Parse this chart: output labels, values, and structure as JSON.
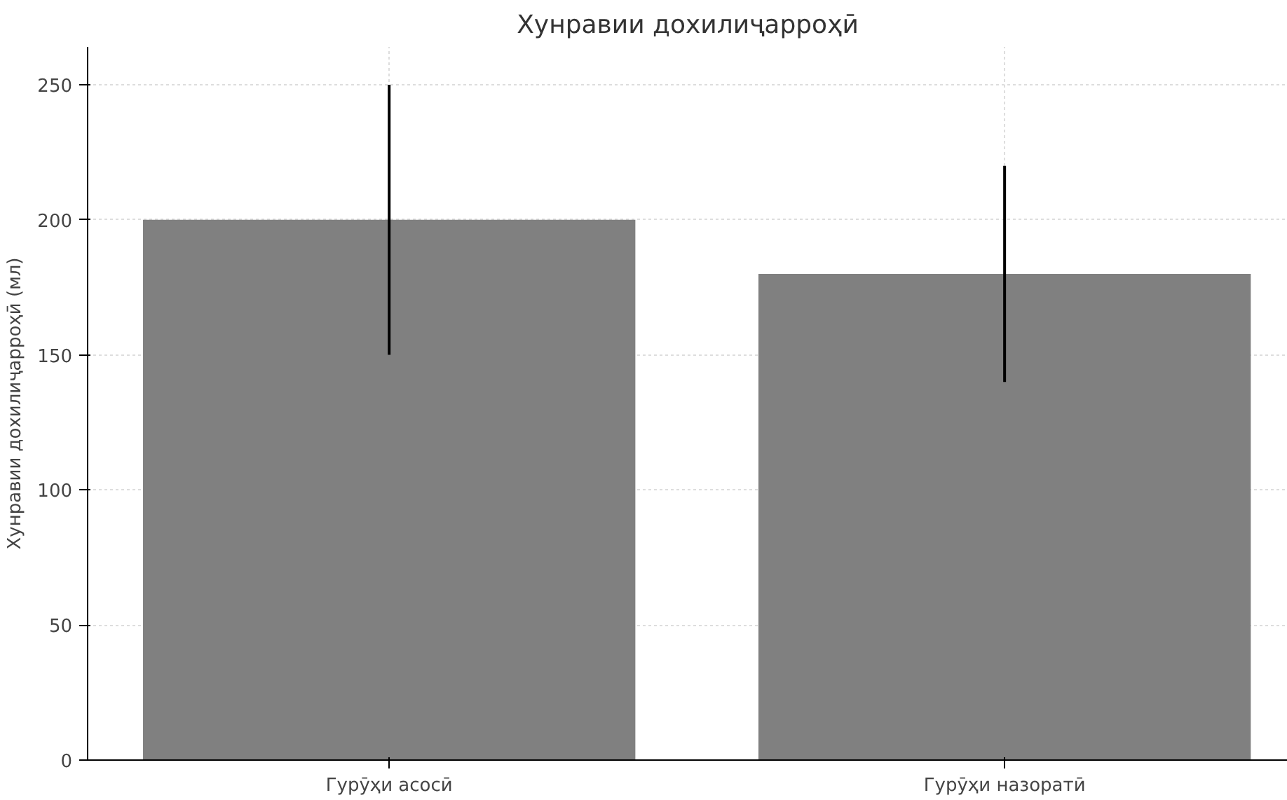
{
  "chart_data": {
    "type": "bar",
    "title": "Хунравии дохилиҷарроҳӣ",
    "ylabel": "Хунравии дохилиҷарроҳӣ (мл)",
    "categories": [
      "Гурӯҳи асосӣ",
      "Гурӯҳи назоратӣ"
    ],
    "values": [
      200,
      180
    ],
    "errors": [
      50,
      40
    ],
    "color": "#808080",
    "ylim": [
      0,
      264
    ],
    "yticks": [
      0,
      50,
      100,
      150,
      200,
      250
    ],
    "grid": true
  }
}
